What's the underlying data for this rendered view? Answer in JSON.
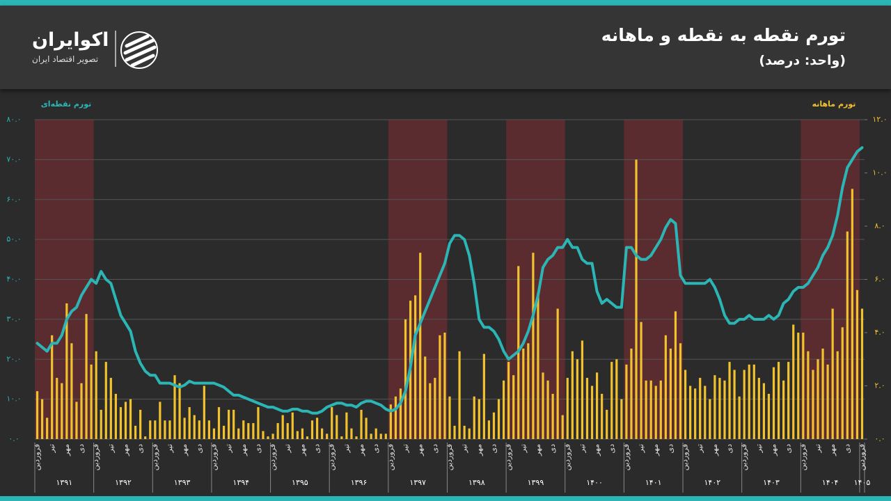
{
  "brand": {
    "name": "اکوایران",
    "tagline": "تصویر اقتصاد ایران"
  },
  "chart_data": {
    "type": "combo",
    "title": "تورم نقطه به نقطه و ماهانه",
    "subtitle": "(واحد: درصد)",
    "categories": [
      "فروردین",
      null,
      null,
      "تیر",
      null,
      null,
      "مهر",
      null,
      null,
      "دی",
      null,
      null,
      "فروردین",
      null,
      null,
      "تیر",
      null,
      null,
      "مهر",
      null,
      null,
      "دی",
      null,
      null,
      "فروردین",
      null,
      null,
      "تیر",
      null,
      null,
      "مهر",
      null,
      null,
      "دی",
      null,
      null,
      "فروردین",
      null,
      null,
      "تیر",
      null,
      null,
      "مهر",
      null,
      null,
      "دی",
      null,
      null,
      "فروردین",
      null,
      null,
      "تیر",
      null,
      null,
      "مهر",
      null,
      null,
      "دی",
      null,
      null,
      "فروردین",
      null,
      null,
      "تیر",
      null,
      null,
      "مهر",
      null,
      null,
      "دی",
      null,
      null,
      "فروردین",
      null,
      null,
      "تیر",
      null,
      null,
      "مهر",
      null,
      null,
      "دی",
      null,
      null,
      "فروردین",
      null,
      null,
      "تیر",
      null,
      null,
      "مهر",
      null,
      null,
      "دی",
      null,
      null,
      "فروردین",
      null,
      null,
      "تیر",
      null,
      null,
      "مهر",
      null,
      null,
      "دی",
      null,
      null,
      "فروردین",
      null,
      null,
      "تیر",
      null,
      null,
      "مهر",
      null,
      null,
      "دی",
      null,
      null,
      "فروردین",
      null,
      null,
      "تیر",
      null,
      null,
      "مهر",
      null,
      null,
      "دی",
      null,
      null,
      "فروردین",
      null,
      null,
      "تیر",
      null,
      null,
      "مهر",
      null,
      null,
      "دی",
      null,
      null,
      "فروردین",
      null,
      null,
      "تیر",
      null,
      null,
      "مهر",
      null,
      null,
      "دی",
      null,
      null,
      "فروردین",
      null,
      null,
      "تیر",
      null,
      null,
      "مهر",
      null,
      null,
      "دی",
      null,
      null,
      "فروردین"
    ],
    "year_labels": [
      "۱۳۹۱",
      "۱۳۹۲",
      "۱۳۹۳",
      "۱۳۹۴",
      "۱۳۹۵",
      "۱۳۹۶",
      "۱۳۹۷",
      "۱۳۹۸",
      "۱۳۹۹",
      "۱۴۰۰",
      "۱۴۰۱",
      "۱۴۰۲",
      "۱۴۰۳",
      "۱۴۰۴",
      "۱۴۰۵"
    ],
    "year_shaded": [
      true,
      false,
      false,
      false,
      false,
      false,
      true,
      false,
      true,
      false,
      true,
      false,
      false,
      true,
      false
    ],
    "series": [
      {
        "name": "تورم ماهانه",
        "type": "bar",
        "axis": "y2",
        "color": "#f2c12e",
        "values": [
          1.8,
          1.5,
          0.8,
          3.9,
          2.3,
          2.1,
          5.1,
          3.6,
          1.4,
          2.1,
          4.7,
          2.8,
          3.3,
          1.1,
          2.9,
          2.3,
          1.7,
          1.2,
          1.4,
          1.5,
          0.5,
          1.1,
          0.1,
          0.7,
          0.7,
          1.4,
          0.7,
          0.7,
          2.4,
          2.1,
          0.8,
          1.2,
          0.9,
          0.7,
          2.0,
          0.7,
          0.4,
          1.2,
          0.5,
          1.1,
          1.1,
          0.4,
          0.7,
          0.6,
          0.6,
          1.2,
          0.3,
          0.1,
          0.2,
          0.6,
          0.9,
          0.6,
          1.0,
          0.3,
          0.4,
          0.1,
          0.7,
          0.8,
          0.4,
          0.2,
          1.2,
          0.9,
          0.1,
          1.0,
          0.4,
          0.1,
          1.1,
          0.8,
          0.2,
          0.4,
          0.2,
          0.2,
          1.3,
          1.6,
          1.9,
          4.5,
          5.2,
          5.4,
          7.0,
          3.1,
          2.1,
          2.3,
          3.9,
          4.0,
          1.6,
          0.5,
          3.3,
          0.5,
          0.4,
          1.6,
          1.5,
          3.2,
          0.7,
          1.0,
          1.5,
          2.2,
          2.9,
          2.4,
          6.5,
          3.4,
          3.6,
          7.0,
          5.5,
          2.5,
          2.2,
          1.7,
          4.9,
          0.9,
          2.3,
          3.3,
          3.0,
          3.7,
          2.3,
          2.0,
          2.5,
          1.7,
          1.1,
          2.9,
          3.0,
          1.5,
          2.8,
          3.4,
          10.5,
          4.4,
          2.2,
          2.2,
          2.0,
          2.2,
          3.9,
          3.4,
          4.8,
          3.6,
          2.6,
          2.0,
          1.9,
          2.3,
          2.0,
          1.5,
          2.4,
          2.3,
          2.2,
          2.9,
          2.6,
          1.6,
          2.6,
          2.8,
          2.8,
          2.3,
          2.1,
          1.7,
          2.7,
          2.9,
          2.2,
          2.9,
          4.3,
          4.0,
          4.0,
          3.3,
          2.6,
          3.0,
          3.4,
          2.8,
          4.9,
          3.3,
          4.2,
          7.8,
          9.4,
          5.6,
          4.9
        ]
      },
      {
        "name": "تورم نقطه‌ای",
        "type": "line",
        "axis": "y",
        "color": "#2cb5b5",
        "values": [
          24,
          23,
          22,
          24,
          24,
          26,
          30,
          32,
          33,
          36,
          38,
          40,
          39,
          42,
          40,
          39,
          35,
          31,
          29,
          27,
          22,
          19,
          17,
          16,
          16,
          14,
          14,
          14,
          13.5,
          13,
          13.5,
          14.5,
          14,
          14,
          14,
          14,
          14,
          13.5,
          13,
          12,
          11,
          11,
          10.5,
          10,
          9.5,
          9,
          8.5,
          8,
          8,
          7.5,
          7,
          7,
          7.5,
          7.5,
          7,
          7,
          6.5,
          6.5,
          7,
          8,
          8.5,
          9,
          9,
          8.5,
          8.5,
          8,
          9,
          9.5,
          9.5,
          9,
          8.5,
          7.5,
          7,
          7.5,
          9,
          12,
          18,
          26,
          29,
          32,
          35,
          38,
          41,
          44,
          49,
          51,
          51,
          50,
          46,
          39,
          30,
          28,
          28,
          27,
          25,
          22,
          20,
          21,
          22,
          24,
          27,
          31,
          36,
          43,
          45,
          46,
          48,
          48,
          50,
          48,
          48,
          45,
          44,
          44,
          37,
          34,
          35,
          34,
          33,
          33,
          48,
          48,
          46,
          45,
          45,
          46,
          48,
          50,
          53,
          55,
          54,
          41,
          39,
          39,
          39,
          39,
          39,
          40,
          38,
          35,
          31,
          29,
          29,
          30,
          30,
          31,
          30,
          30,
          30,
          31,
          30,
          31,
          34,
          35,
          37,
          38,
          38,
          39,
          41,
          43,
          46,
          48,
          51,
          56,
          63,
          68,
          70,
          72,
          73
        ]
      }
    ],
    "ylim": [
      0,
      80
    ],
    "yticks": [
      {
        "value": 0,
        "label": "۰.۰"
      },
      {
        "value": 10,
        "label": "۱۰.۰"
      },
      {
        "value": 20,
        "label": "۲۰.۰"
      },
      {
        "value": 30,
        "label": "۳۰.۰"
      },
      {
        "value": 40,
        "label": "۴۰.۰"
      },
      {
        "value": 50,
        "label": "۵۰.۰"
      },
      {
        "value": 60,
        "label": "۶۰.۰"
      },
      {
        "value": 70,
        "label": "۷۰.۰"
      },
      {
        "value": 80,
        "label": "۸۰.۰"
      }
    ],
    "y2lim": [
      0,
      12
    ],
    "y2ticks": [
      {
        "value": 0,
        "label": "۰.۰"
      },
      {
        "value": 2,
        "label": "۲.۰"
      },
      {
        "value": 4,
        "label": "۴.۰"
      },
      {
        "value": 6,
        "label": "۶.۰"
      },
      {
        "value": 8,
        "label": "۸.۰"
      },
      {
        "value": 10,
        "label": "۱۰.۰"
      },
      {
        "value": 12,
        "label": "۱۲.۰"
      }
    ],
    "grid": true
  }
}
